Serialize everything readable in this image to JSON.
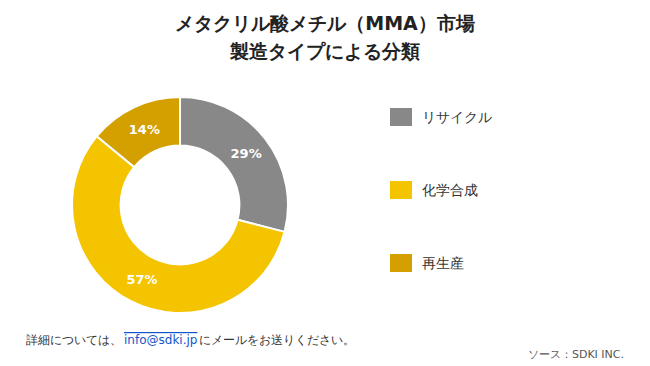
{
  "chart_data": {
    "type": "pie",
    "title": "メタクリル酸メチル（MMA）市場",
    "subtitle": "製造タイプによる分類",
    "categories": [
      "リサイクル",
      "化学合成",
      "再生産"
    ],
    "values": [
      29,
      57,
      14
    ],
    "value_labels": [
      "29%",
      "57%",
      "14%"
    ],
    "colors": [
      "#888888",
      "#F5C400",
      "#D4A000"
    ],
    "data_labels": true,
    "legend": "right",
    "annotations": [
      "詳細については、",
      "info@sdki.jp",
      "にメールをお送りください。",
      "ソース：SDKI INC."
    ]
  }
}
